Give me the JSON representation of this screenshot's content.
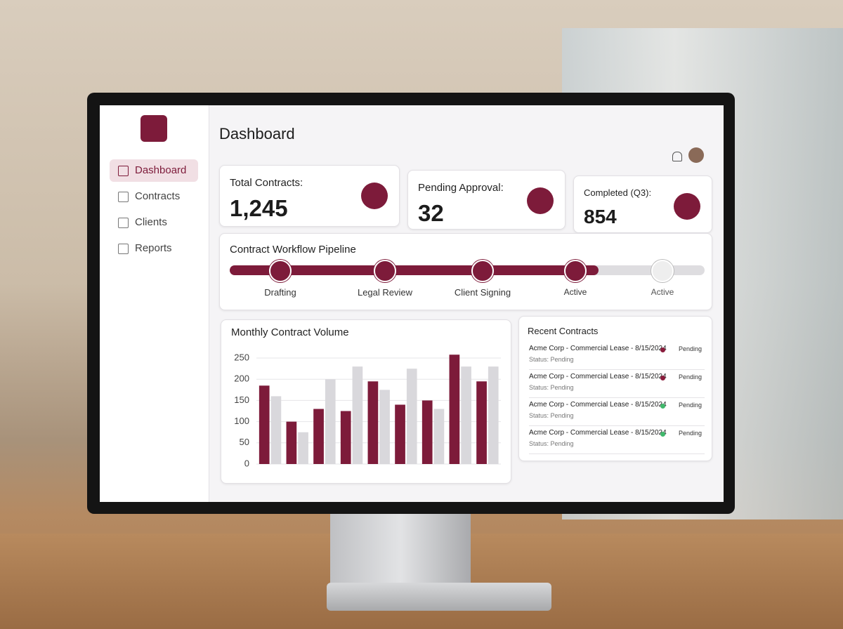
{
  "sidebar": {
    "nav": [
      "Dashboard",
      "Contracts",
      "Clients",
      "Reports"
    ]
  },
  "header": {
    "title": "Dashboard"
  },
  "kpis": [
    {
      "label": "Total Contracts:",
      "value": "1,245"
    },
    {
      "label": "Pending Approval:",
      "value": "32"
    },
    {
      "label": "Completed (Q3):",
      "value": "854"
    }
  ],
  "pipeline": {
    "title": "Contract Workflow Pipeline",
    "stages": [
      "Drafting",
      "Legal Review",
      "Client Signing",
      "Active",
      "Active"
    ]
  },
  "recent_contracts": {
    "title": "Recent Contracts",
    "rows": [
      {
        "name": "Acme Corp - Commercial Lease - 8/15/2024",
        "status": "Status: Pending",
        "badge": "Pending",
        "color": "#8a1c3c"
      },
      {
        "name": "Acme Corp - Commercial Lease - 8/15/2024",
        "status": "Status: Pending",
        "badge": "Pending",
        "color": "#8a1c3c"
      },
      {
        "name": "Acme Corp - Commercial Lease - 8/15/2024",
        "status": "Status: Pending",
        "badge": "Pending",
        "color": "#3fb86b"
      },
      {
        "name": "Acme Corp - Commercial Lease - 8/15/2024",
        "status": "Status: Pending",
        "badge": "Pending",
        "color": "#3fb86b"
      }
    ]
  },
  "chart_data": {
    "type": "bar",
    "title": "Monthly Contract Volume",
    "categories": [
      null,
      null,
      null,
      null,
      null,
      null,
      null,
      null,
      null
    ],
    "series": [
      {
        "color": "#7d1b3a",
        "values": [
          185,
          100,
          130,
          125,
          195,
          140,
          150,
          258,
          195
        ]
      },
      {
        "color": "#d9d8dc",
        "values": [
          160,
          75,
          200,
          230,
          175,
          225,
          130,
          230,
          230
        ]
      }
    ],
    "ylim": [
      0,
      265
    ],
    "yticks": [
      0,
      50,
      100,
      150,
      200,
      250
    ],
    "grid": true
  }
}
